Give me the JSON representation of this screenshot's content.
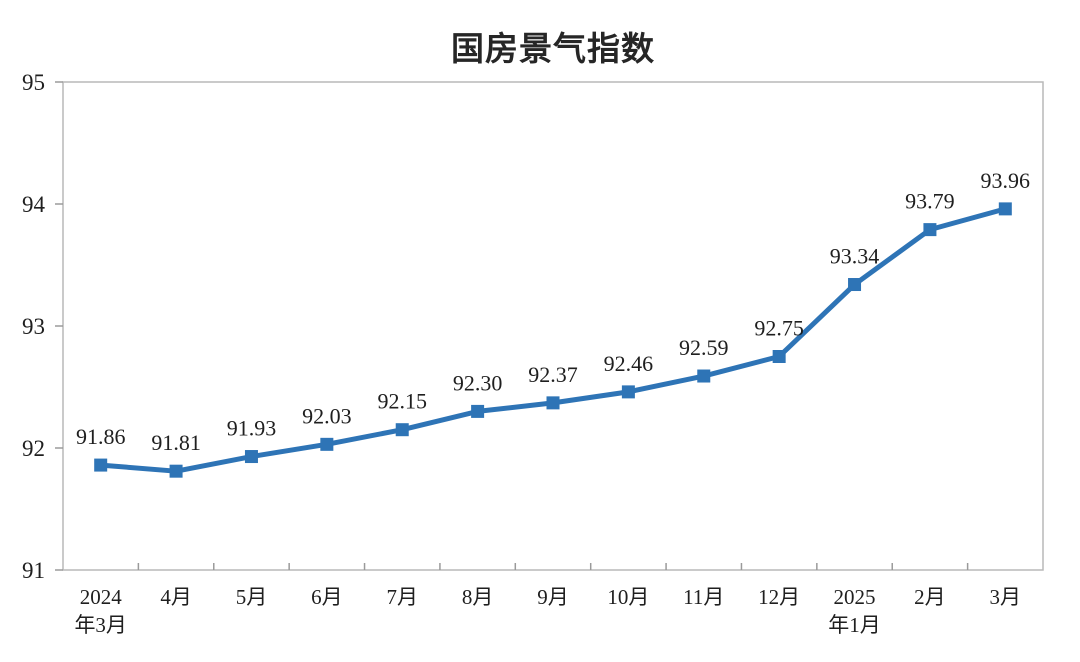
{
  "page": {
    "background_color": "#ffffff"
  },
  "chart_data": {
    "type": "line",
    "title": "国房景气指数",
    "series_name": "国房景气指数",
    "categories": [
      "2024年3月",
      "4月",
      "5月",
      "6月",
      "7月",
      "8月",
      "9月",
      "10月",
      "11月",
      "12月",
      "2025年1月",
      "2月",
      "3月"
    ],
    "category_label_lines": [
      [
        "2024",
        "年3月"
      ],
      [
        "4月"
      ],
      [
        "5月"
      ],
      [
        "6月"
      ],
      [
        "7月"
      ],
      [
        "8月"
      ],
      [
        "9月"
      ],
      [
        "10月"
      ],
      [
        "11月"
      ],
      [
        "12月"
      ],
      [
        "2025",
        "年1月"
      ],
      [
        "2月"
      ],
      [
        "3月"
      ]
    ],
    "values": [
      91.86,
      91.81,
      91.93,
      92.03,
      92.15,
      92.3,
      92.37,
      92.46,
      92.59,
      92.75,
      93.34,
      93.79,
      93.96
    ],
    "data_labels": [
      "91.86",
      "91.81",
      "91.93",
      "92.03",
      "92.15",
      "92.30",
      "92.37",
      "92.46",
      "92.59",
      "92.75",
      "93.34",
      "93.79",
      "93.96"
    ],
    "ylim": [
      91,
      95
    ],
    "yticks": [
      91,
      92,
      93,
      94,
      95
    ],
    "ytick_labels": [
      "91",
      "92",
      "93",
      "94",
      "95"
    ],
    "xlabel": "",
    "ylabel": "",
    "grid": false,
    "legend_position": "none",
    "marker": "square",
    "colors": {
      "line": "#2E74B6",
      "marker": "#2E74B6",
      "data_label_text": "#1f1f1f",
      "axis_tick_text": "#1f1f1f",
      "plot_border": "#b9b9b9",
      "tick_mark": "#9a9a9a",
      "title_text": "#262626"
    }
  }
}
